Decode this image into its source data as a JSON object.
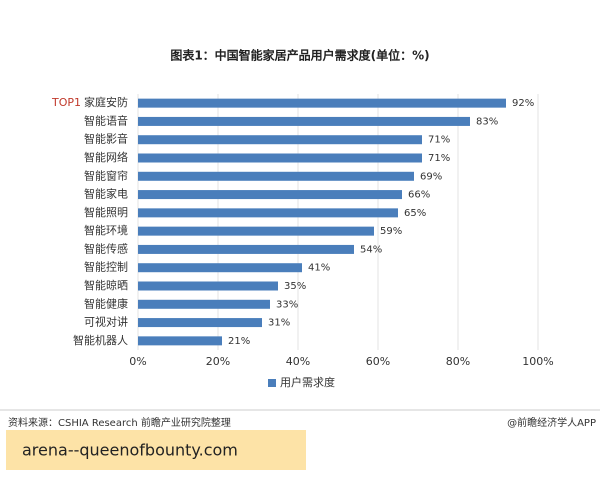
{
  "chart_data": {
    "type": "hbar",
    "title": "图表1：中国智能家居产品用户需求度(单位：%)",
    "categories": [
      "家庭安防",
      "智能语音",
      "智能影音",
      "智能网络",
      "智能窗帘",
      "智能家电",
      "智能照明",
      "智能环境",
      "智能传感",
      "智能控制",
      "智能晾晒",
      "智能健康",
      "可视对讲",
      "智能机器人"
    ],
    "top_tag": "TOP1",
    "top_tag_color": "#c0392b",
    "series": [
      {
        "name": "用户需求度",
        "color": "#4a7ebb",
        "values": [
          92,
          83,
          71,
          71,
          69,
          66,
          65,
          59,
          54,
          41,
          35,
          33,
          31,
          21
        ],
        "value_labels": [
          "92%",
          "83%",
          "71%",
          "71%",
          "69%",
          "66%",
          "65%",
          "59%",
          "54%",
          "41%",
          "35%",
          "33%",
          "31%",
          "21%"
        ]
      }
    ],
    "xlim": [
      0,
      100
    ],
    "xticks": [
      {
        "value": 0,
        "label": "0%"
      },
      {
        "value": 20,
        "label": "20%"
      },
      {
        "value": 40,
        "label": "40%"
      },
      {
        "value": 60,
        "label": "60%"
      },
      {
        "value": 80,
        "label": "80%"
      },
      {
        "value": 100,
        "label": "100%"
      }
    ],
    "grid": true,
    "source": "资料来源：CSHIA Research 前瞻产业研究院整理",
    "credit": "@前瞻经济学人APP",
    "overlay_text": "arena--queenofbounty.com"
  }
}
